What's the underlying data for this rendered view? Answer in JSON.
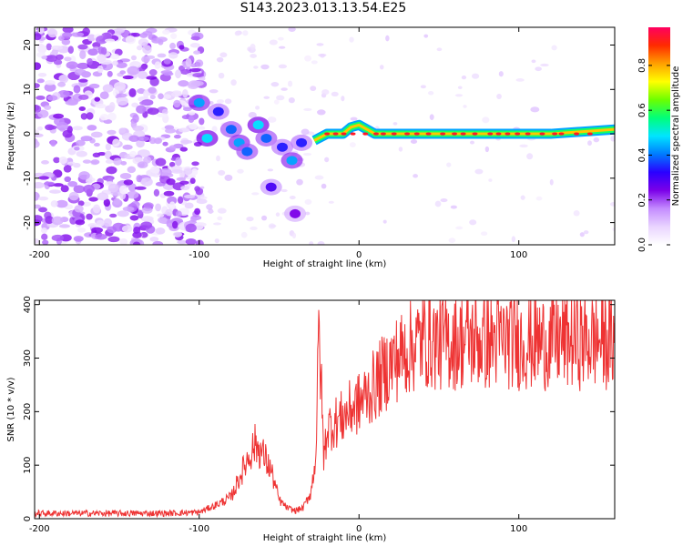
{
  "title": "S143.2023.013.13.54.E25",
  "chart_data": [
    {
      "type": "heatmap",
      "xlabel": "Height of straight line (km)",
      "ylabel": "Frequency (Hz)",
      "xlim": [
        -203,
        160
      ],
      "ylim": [
        -25,
        24
      ],
      "xticks": [
        -200,
        -100,
        0,
        100
      ],
      "yticks": [
        -20,
        -10,
        0,
        10,
        20
      ],
      "grid": false,
      "colorbar": {
        "label": "Normalized spectral amplitude",
        "range": [
          0,
          0.97
        ],
        "ticks": [
          0.0,
          0.2,
          0.4,
          0.6,
          0.8
        ],
        "tick_labels": [
          "0.0",
          "0.2",
          "0.4",
          "0.6",
          "0.8"
        ],
        "colormap": [
          "#ffffff",
          "#e9d4ff",
          "#c48cff",
          "#7b00e8",
          "#2a00ff",
          "#007bff",
          "#00e5ff",
          "#00ff7a",
          "#6cff00",
          "#ffff00",
          "#ffa000",
          "#ff2a00",
          "#ff0060"
        ]
      },
      "main_ridge": [
        {
          "x": -28,
          "y": -1.5
        },
        {
          "x": -20,
          "y": 0
        },
        {
          "x": -10,
          "y": 0
        },
        {
          "x": -5,
          "y": 1.5
        },
        {
          "x": 0,
          "y": 2
        },
        {
          "x": 10,
          "y": 0
        },
        {
          "x": 40,
          "y": 0
        },
        {
          "x": 80,
          "y": 0
        },
        {
          "x": 120,
          "y": 0
        },
        {
          "x": 160,
          "y": 1
        }
      ],
      "clusters": [
        {
          "x": -100,
          "y": 7,
          "value": 0.45
        },
        {
          "x": -95,
          "y": -1,
          "value": 0.5
        },
        {
          "x": -88,
          "y": 5,
          "value": 0.35
        },
        {
          "x": -80,
          "y": 1,
          "value": 0.4
        },
        {
          "x": -75,
          "y": -2,
          "value": 0.45
        },
        {
          "x": -70,
          "y": -4,
          "value": 0.4
        },
        {
          "x": -63,
          "y": 2,
          "value": 0.5
        },
        {
          "x": -58,
          "y": -1,
          "value": 0.4
        },
        {
          "x": -55,
          "y": -12,
          "value": 0.3
        },
        {
          "x": -48,
          "y": -3,
          "value": 0.35
        },
        {
          "x": -42,
          "y": -6,
          "value": 0.45
        },
        {
          "x": -40,
          "y": -18,
          "value": 0.25
        },
        {
          "x": -36,
          "y": -2,
          "value": 0.35
        }
      ]
    },
    {
      "type": "line",
      "xlabel": "Height of straight line (km)",
      "ylabel": "SNR (10 * v/v)",
      "xlim": [
        -203,
        160
      ],
      "ylim": [
        0,
        408
      ],
      "xticks": [
        -200,
        -100,
        0,
        100
      ],
      "yticks": [
        0,
        100,
        200,
        300,
        400
      ],
      "grid": false,
      "color": "#ee3333",
      "series": [
        {
          "x": [
            -203,
            -180,
            -160,
            -140,
            -120,
            -100,
            -90,
            -80,
            -70,
            -65,
            -60,
            -55,
            -50,
            -45,
            -40,
            -35,
            -30,
            -27,
            -25,
            -22,
            -20,
            -15,
            -10,
            -5,
            0,
            10,
            20,
            30,
            40,
            50,
            60,
            70,
            80,
            90,
            100,
            110,
            120,
            130,
            140,
            150,
            160
          ],
          "values": [
            10,
            10,
            10,
            10,
            10,
            12,
            25,
            40,
            110,
            140,
            120,
            90,
            35,
            20,
            15,
            20,
            50,
            120,
            360,
            110,
            170,
            180,
            190,
            205,
            215,
            250,
            290,
            315,
            335,
            330,
            330,
            335,
            330,
            335,
            330,
            330,
            330,
            335,
            330,
            335,
            330
          ]
        }
      ]
    }
  ]
}
